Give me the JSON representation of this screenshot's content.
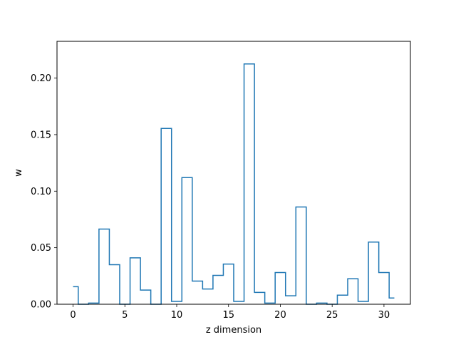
{
  "chart_data": {
    "type": "line",
    "drawstyle": "steps-mid",
    "xlabel": "z dimension",
    "ylabel": "w",
    "xlim": [
      -1.55,
      32.55
    ],
    "ylim": [
      0,
      0.2325
    ],
    "xticks": [
      0,
      5,
      10,
      15,
      20,
      25,
      30
    ],
    "yticks": [
      0.0,
      0.05,
      0.1,
      0.15,
      0.2
    ],
    "ytick_labels": [
      "0.00",
      "0.05",
      "0.10",
      "0.15",
      "0.20"
    ],
    "grid": false,
    "line_color": "#1f77b4",
    "x": [
      0,
      1,
      2,
      3,
      4,
      5,
      6,
      7,
      8,
      9,
      10,
      11,
      12,
      13,
      14,
      15,
      16,
      17,
      18,
      19,
      20,
      21,
      22,
      23,
      24,
      25,
      26,
      27,
      28,
      29,
      30,
      31
    ],
    "values": [
      0.0155,
      0.0,
      0.001,
      0.0665,
      0.035,
      0.0,
      0.041,
      0.0125,
      0.0,
      0.1555,
      0.0025,
      0.112,
      0.0205,
      0.0135,
      0.0255,
      0.0355,
      0.0025,
      0.2125,
      0.0105,
      0.001,
      0.028,
      0.0075,
      0.086,
      0.0,
      0.001,
      0.0,
      0.008,
      0.0225,
      0.0025,
      0.055,
      0.028,
      0.0055
    ]
  }
}
